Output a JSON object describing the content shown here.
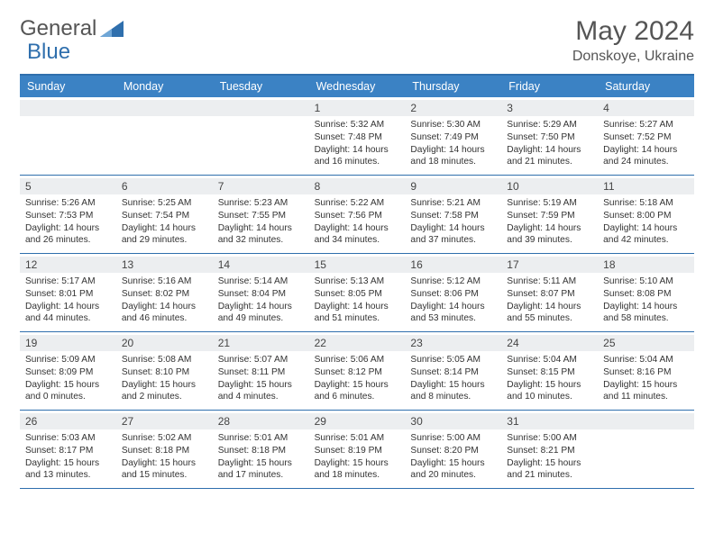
{
  "brand": {
    "part1": "General",
    "part2": "Blue"
  },
  "title": "May 2024",
  "location": "Donskoye, Ukraine",
  "colors": {
    "header_bg": "#3b82c4",
    "border": "#2f6fad",
    "daynum_bg": "#eceef0",
    "text": "#333333",
    "title_text": "#555555"
  },
  "day_names": [
    "Sunday",
    "Monday",
    "Tuesday",
    "Wednesday",
    "Thursday",
    "Friday",
    "Saturday"
  ],
  "weeks": [
    [
      {
        "n": "",
        "sr": "",
        "ss": "",
        "dl": ""
      },
      {
        "n": "",
        "sr": "",
        "ss": "",
        "dl": ""
      },
      {
        "n": "",
        "sr": "",
        "ss": "",
        "dl": ""
      },
      {
        "n": "1",
        "sr": "5:32 AM",
        "ss": "7:48 PM",
        "dl": "14 hours and 16 minutes."
      },
      {
        "n": "2",
        "sr": "5:30 AM",
        "ss": "7:49 PM",
        "dl": "14 hours and 18 minutes."
      },
      {
        "n": "3",
        "sr": "5:29 AM",
        "ss": "7:50 PM",
        "dl": "14 hours and 21 minutes."
      },
      {
        "n": "4",
        "sr": "5:27 AM",
        "ss": "7:52 PM",
        "dl": "14 hours and 24 minutes."
      }
    ],
    [
      {
        "n": "5",
        "sr": "5:26 AM",
        "ss": "7:53 PM",
        "dl": "14 hours and 26 minutes."
      },
      {
        "n": "6",
        "sr": "5:25 AM",
        "ss": "7:54 PM",
        "dl": "14 hours and 29 minutes."
      },
      {
        "n": "7",
        "sr": "5:23 AM",
        "ss": "7:55 PM",
        "dl": "14 hours and 32 minutes."
      },
      {
        "n": "8",
        "sr": "5:22 AM",
        "ss": "7:56 PM",
        "dl": "14 hours and 34 minutes."
      },
      {
        "n": "9",
        "sr": "5:21 AM",
        "ss": "7:58 PM",
        "dl": "14 hours and 37 minutes."
      },
      {
        "n": "10",
        "sr": "5:19 AM",
        "ss": "7:59 PM",
        "dl": "14 hours and 39 minutes."
      },
      {
        "n": "11",
        "sr": "5:18 AM",
        "ss": "8:00 PM",
        "dl": "14 hours and 42 minutes."
      }
    ],
    [
      {
        "n": "12",
        "sr": "5:17 AM",
        "ss": "8:01 PM",
        "dl": "14 hours and 44 minutes."
      },
      {
        "n": "13",
        "sr": "5:16 AM",
        "ss": "8:02 PM",
        "dl": "14 hours and 46 minutes."
      },
      {
        "n": "14",
        "sr": "5:14 AM",
        "ss": "8:04 PM",
        "dl": "14 hours and 49 minutes."
      },
      {
        "n": "15",
        "sr": "5:13 AM",
        "ss": "8:05 PM",
        "dl": "14 hours and 51 minutes."
      },
      {
        "n": "16",
        "sr": "5:12 AM",
        "ss": "8:06 PM",
        "dl": "14 hours and 53 minutes."
      },
      {
        "n": "17",
        "sr": "5:11 AM",
        "ss": "8:07 PM",
        "dl": "14 hours and 55 minutes."
      },
      {
        "n": "18",
        "sr": "5:10 AM",
        "ss": "8:08 PM",
        "dl": "14 hours and 58 minutes."
      }
    ],
    [
      {
        "n": "19",
        "sr": "5:09 AM",
        "ss": "8:09 PM",
        "dl": "15 hours and 0 minutes."
      },
      {
        "n": "20",
        "sr": "5:08 AM",
        "ss": "8:10 PM",
        "dl": "15 hours and 2 minutes."
      },
      {
        "n": "21",
        "sr": "5:07 AM",
        "ss": "8:11 PM",
        "dl": "15 hours and 4 minutes."
      },
      {
        "n": "22",
        "sr": "5:06 AM",
        "ss": "8:12 PM",
        "dl": "15 hours and 6 minutes."
      },
      {
        "n": "23",
        "sr": "5:05 AM",
        "ss": "8:14 PM",
        "dl": "15 hours and 8 minutes."
      },
      {
        "n": "24",
        "sr": "5:04 AM",
        "ss": "8:15 PM",
        "dl": "15 hours and 10 minutes."
      },
      {
        "n": "25",
        "sr": "5:04 AM",
        "ss": "8:16 PM",
        "dl": "15 hours and 11 minutes."
      }
    ],
    [
      {
        "n": "26",
        "sr": "5:03 AM",
        "ss": "8:17 PM",
        "dl": "15 hours and 13 minutes."
      },
      {
        "n": "27",
        "sr": "5:02 AM",
        "ss": "8:18 PM",
        "dl": "15 hours and 15 minutes."
      },
      {
        "n": "28",
        "sr": "5:01 AM",
        "ss": "8:18 PM",
        "dl": "15 hours and 17 minutes."
      },
      {
        "n": "29",
        "sr": "5:01 AM",
        "ss": "8:19 PM",
        "dl": "15 hours and 18 minutes."
      },
      {
        "n": "30",
        "sr": "5:00 AM",
        "ss": "8:20 PM",
        "dl": "15 hours and 20 minutes."
      },
      {
        "n": "31",
        "sr": "5:00 AM",
        "ss": "8:21 PM",
        "dl": "15 hours and 21 minutes."
      },
      {
        "n": "",
        "sr": "",
        "ss": "",
        "dl": ""
      }
    ]
  ],
  "labels": {
    "sunrise": "Sunrise:",
    "sunset": "Sunset:",
    "daylight": "Daylight:"
  }
}
